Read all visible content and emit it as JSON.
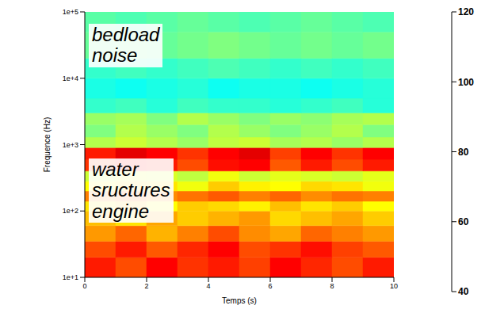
{
  "chart_data": {
    "type": "heatmap",
    "x_label": "Temps (s)",
    "y_label": "Frequence (Hz)",
    "xlim": [
      0,
      10
    ],
    "xticks": [
      0,
      2,
      4,
      6,
      8,
      10
    ],
    "ylim": [
      10,
      100000
    ],
    "yticks": [
      {
        "value": 10,
        "label": "1e+1"
      },
      {
        "value": 100,
        "label": "1e+2"
      },
      {
        "value": 1000,
        "label": "1e+3"
      },
      {
        "value": 10000,
        "label": "1e+4"
      },
      {
        "value": 100000,
        "label": "1e+5"
      }
    ],
    "log": "y",
    "x_edges": [
      0,
      1,
      2,
      3,
      4,
      5,
      6,
      7,
      8,
      9,
      10
    ],
    "y_edges": [
      10,
      20,
      35,
      60,
      100,
      140,
      200,
      280,
      400,
      600,
      900,
      1300,
      2000,
      3000,
      5000,
      10000,
      20000,
      50000,
      100000
    ],
    "cells": [
      [
        108,
        104,
        110,
        106,
        108,
        105,
        110,
        107,
        104,
        108
      ],
      [
        104,
        108,
        103,
        107,
        110,
        104,
        106,
        109,
        105,
        103
      ],
      [
        98,
        102,
        96,
        100,
        104,
        99,
        97,
        102,
        100,
        98
      ],
      [
        95,
        92,
        97,
        94,
        96,
        98,
        93,
        95,
        97,
        94
      ],
      [
        92,
        95,
        90,
        94,
        93,
        91,
        95,
        92,
        94,
        90
      ],
      [
        100,
        102,
        99,
        101,
        103,
        100,
        102,
        99,
        101,
        100
      ],
      [
        90,
        93,
        92,
        89,
        94,
        91,
        90,
        93,
        92,
        89
      ],
      [
        86,
        88,
        87,
        85,
        89,
        86,
        88,
        87,
        86,
        88
      ],
      [
        106,
        110,
        108,
        104,
        109,
        110,
        103,
        108,
        104,
        108
      ],
      [
        108,
        112,
        110,
        106,
        110,
        112,
        105,
        110,
        106,
        110
      ],
      [
        84,
        86,
        84,
        82,
        85,
        86,
        83,
        84,
        82,
        84
      ],
      [
        80,
        84,
        82,
        80,
        84,
        82,
        80,
        82,
        84,
        80
      ],
      [
        82,
        83,
        80,
        84,
        82,
        80,
        82,
        81,
        83,
        84
      ],
      [
        74,
        75,
        73,
        75,
        74,
        74,
        73,
        74,
        75,
        73
      ],
      [
        72,
        71,
        72,
        73,
        71,
        72,
        72,
        71,
        72,
        73
      ],
      [
        74,
        75,
        74,
        75,
        76,
        75,
        74,
        75,
        74,
        75
      ],
      [
        78,
        79,
        78,
        79,
        80,
        79,
        78,
        79,
        78,
        79
      ],
      [
        77,
        76,
        77,
        78,
        77,
        76,
        77,
        78,
        77,
        76
      ]
    ],
    "colorbar_range": [
      40,
      120
    ],
    "colorbar_ticks": [
      40,
      60,
      80,
      100,
      120
    ],
    "annotations": [
      "bedload noise",
      "water sructures engine"
    ]
  }
}
